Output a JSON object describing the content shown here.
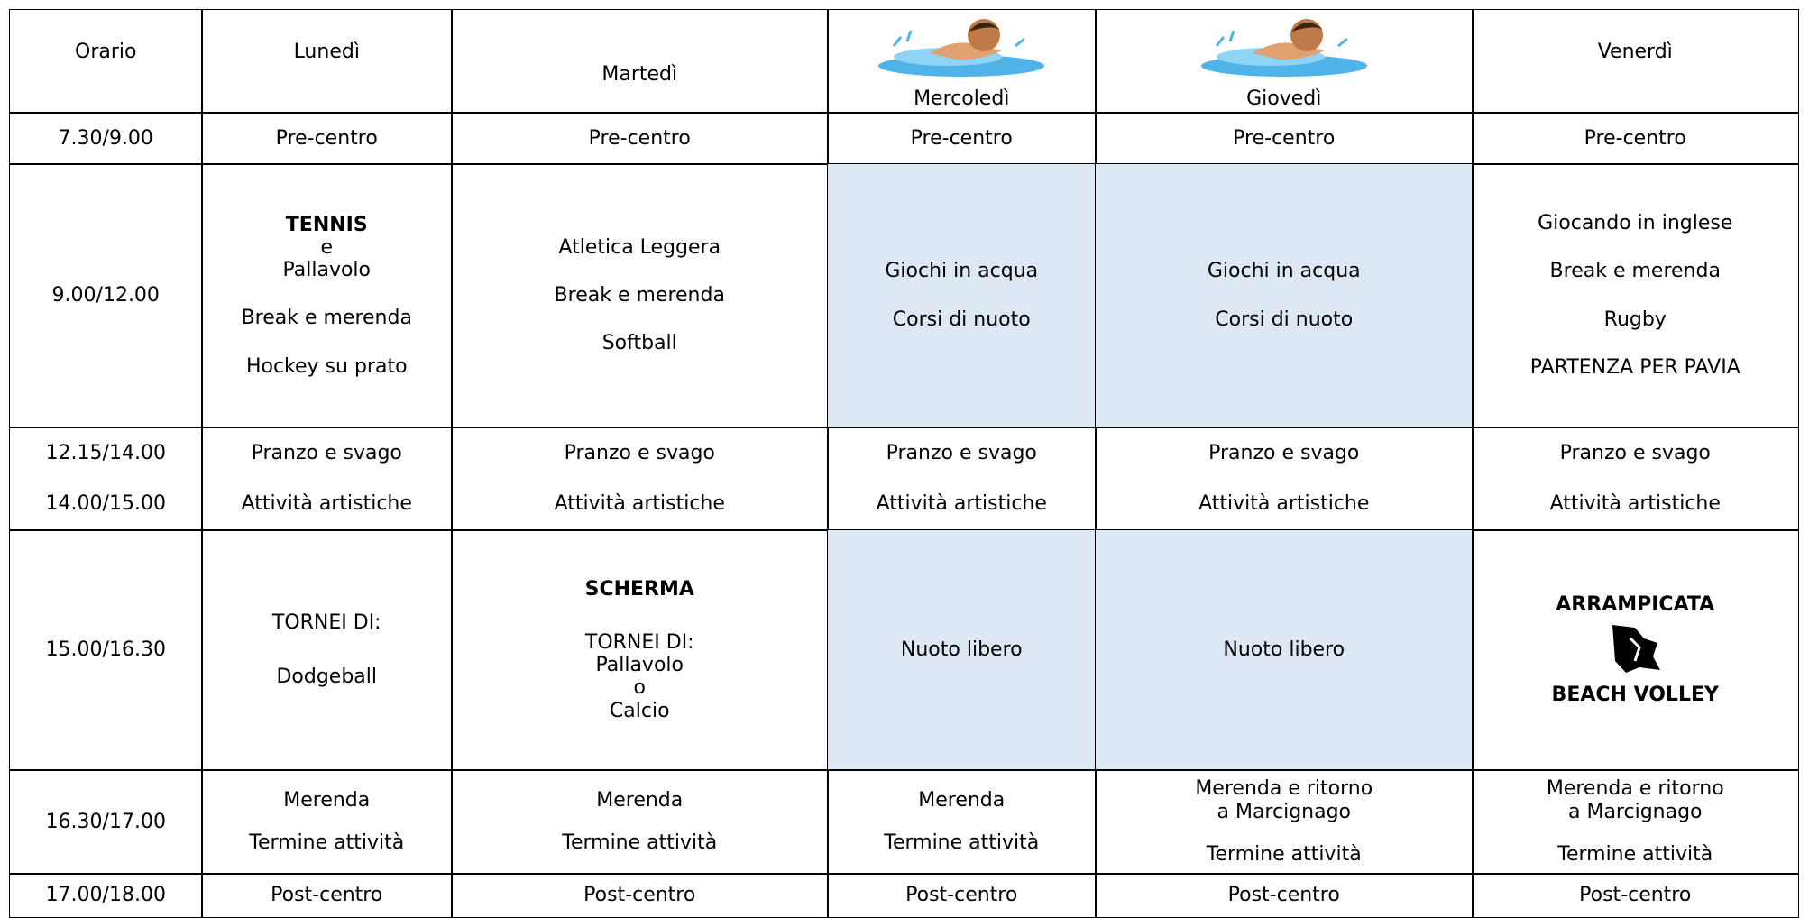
{
  "table": {
    "header": [
      "Orario",
      "Lunedì",
      "Martedì",
      "Mercoledì",
      "Giovedì",
      "Venerdì"
    ],
    "rows": [
      {
        "time": [
          [
            "7.30/9.00"
          ]
        ],
        "cells": [
          [
            [
              "Pre-centro"
            ]
          ],
          [
            [
              "Pre-centro"
            ]
          ],
          [
            [
              "Pre-centro"
            ]
          ],
          [
            [
              "Pre-centro"
            ]
          ],
          [
            [
              "Pre-centro"
            ]
          ]
        ]
      },
      {
        "time": [
          [
            "9.00/12.00"
          ]
        ],
        "cells": [
          [
            [
              "TENNIS",
              "e",
              "Pallavolo"
            ],
            [
              "Break e merenda"
            ],
            [
              "Hockey su prato"
            ]
          ],
          [
            [
              "Atletica Leggera"
            ],
            [
              "Break e merenda"
            ],
            [
              "Softball"
            ]
          ],
          [
            [
              "Giochi in acqua"
            ],
            [
              "Corsi di nuoto"
            ]
          ],
          [
            [
              "Giochi in acqua"
            ],
            [
              "Corsi di nuoto"
            ]
          ],
          [
            [
              "Giocando in inglese"
            ],
            [
              "Break e merenda"
            ],
            [
              "Rugby"
            ],
            [
              "PARTENZA PER PAVIA"
            ]
          ]
        ]
      },
      {
        "time": [
          [
            "12.15/14.00"
          ],
          [
            "14.00/15.00"
          ]
        ],
        "cells": [
          [
            [
              "Pranzo e svago"
            ],
            [
              "Attività artistiche"
            ]
          ],
          [
            [
              "Pranzo e svago"
            ],
            [
              "Attività artistiche"
            ]
          ],
          [
            [
              "Pranzo e svago"
            ],
            [
              "Attività artistiche"
            ]
          ],
          [
            [
              "Pranzo e svago"
            ],
            [
              "Attività artistiche"
            ]
          ],
          [
            [
              "Pranzo e svago"
            ],
            [
              "Attività artistiche"
            ]
          ]
        ]
      },
      {
        "time": [
          [
            "15.00/16.30"
          ]
        ],
        "cells": [
          [
            [
              "TORNEI DI:"
            ],
            [
              "Dodgeball"
            ]
          ],
          [
            [
              "SCHERMA"
            ],
            [
              "TORNEI DI:",
              "Pallavolo",
              "o",
              "Calcio"
            ]
          ],
          [
            [
              "Nuoto libero"
            ]
          ],
          [
            [
              "Nuoto libero"
            ]
          ],
          [
            [
              "ARRAMPICATA"
            ],
            [
              "BEACH VOLLEY"
            ]
          ]
        ]
      },
      {
        "time": [
          [
            "16.30/17.00"
          ]
        ],
        "cells": [
          [
            [
              "Merenda"
            ],
            [
              "Termine attività"
            ]
          ],
          [
            [
              "Merenda"
            ],
            [
              "Termine attività"
            ]
          ],
          [
            [
              "Merenda"
            ],
            [
              "Termine attività"
            ]
          ],
          [
            [
              "Merenda e ritorno",
              "a Marcignago"
            ],
            [
              "Termine attività"
            ]
          ],
          [
            [
              "Merenda e ritorno",
              "a Marcignago"
            ],
            [
              "Termine attività"
            ]
          ]
        ]
      },
      {
        "time": [
          [
            "17.00/18.00"
          ]
        ],
        "cells": [
          [
            [
              "Post-centro"
            ]
          ],
          [
            [
              "Post-centro"
            ]
          ],
          [
            [
              "Post-centro"
            ]
          ],
          [
            [
              "Post-centro"
            ]
          ],
          [
            [
              "Post-centro"
            ]
          ]
        ]
      }
    ]
  }
}
